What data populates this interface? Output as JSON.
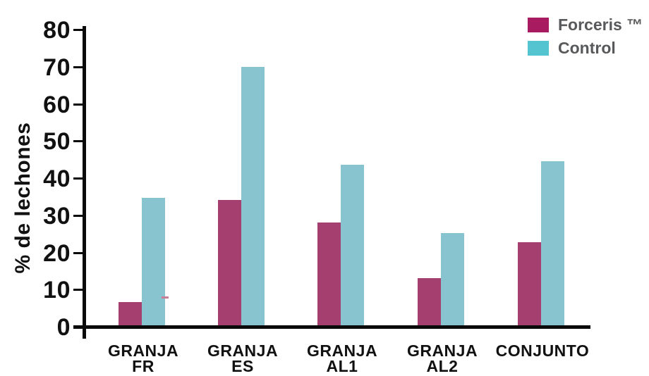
{
  "chart_data": {
    "type": "bar",
    "title": "",
    "xlabel": "",
    "ylabel": "% de lechones",
    "ylim": [
      0,
      80
    ],
    "yticks": [
      0,
      10,
      20,
      30,
      40,
      50,
      60,
      70,
      80
    ],
    "grid": false,
    "legend_position": "top-right",
    "categories": [
      "GRANJA FR",
      "GRANJA ES",
      "GRANJA AL1",
      "GRANJA AL2",
      "CONJUNTO"
    ],
    "series": [
      {
        "name": "Forceris ™",
        "color": "#a43f70",
        "values": [
          6.2,
          33.7,
          27.7,
          12.7,
          22.4
        ]
      },
      {
        "name": "Control",
        "color": "#87c4d0",
        "values": [
          34.4,
          69.5,
          43.3,
          24.9,
          44.2
        ]
      }
    ]
  },
  "legend": {
    "items": [
      {
        "label": "Forceris ™",
        "color": "#a81b61"
      },
      {
        "label": "Control",
        "color": "#54c4d0"
      }
    ]
  },
  "colors": {
    "axis": "#0a0a0a",
    "tick_label": "#111111",
    "category_label": "#111111",
    "legend_text": "#58595b",
    "background": "#ffffff"
  }
}
